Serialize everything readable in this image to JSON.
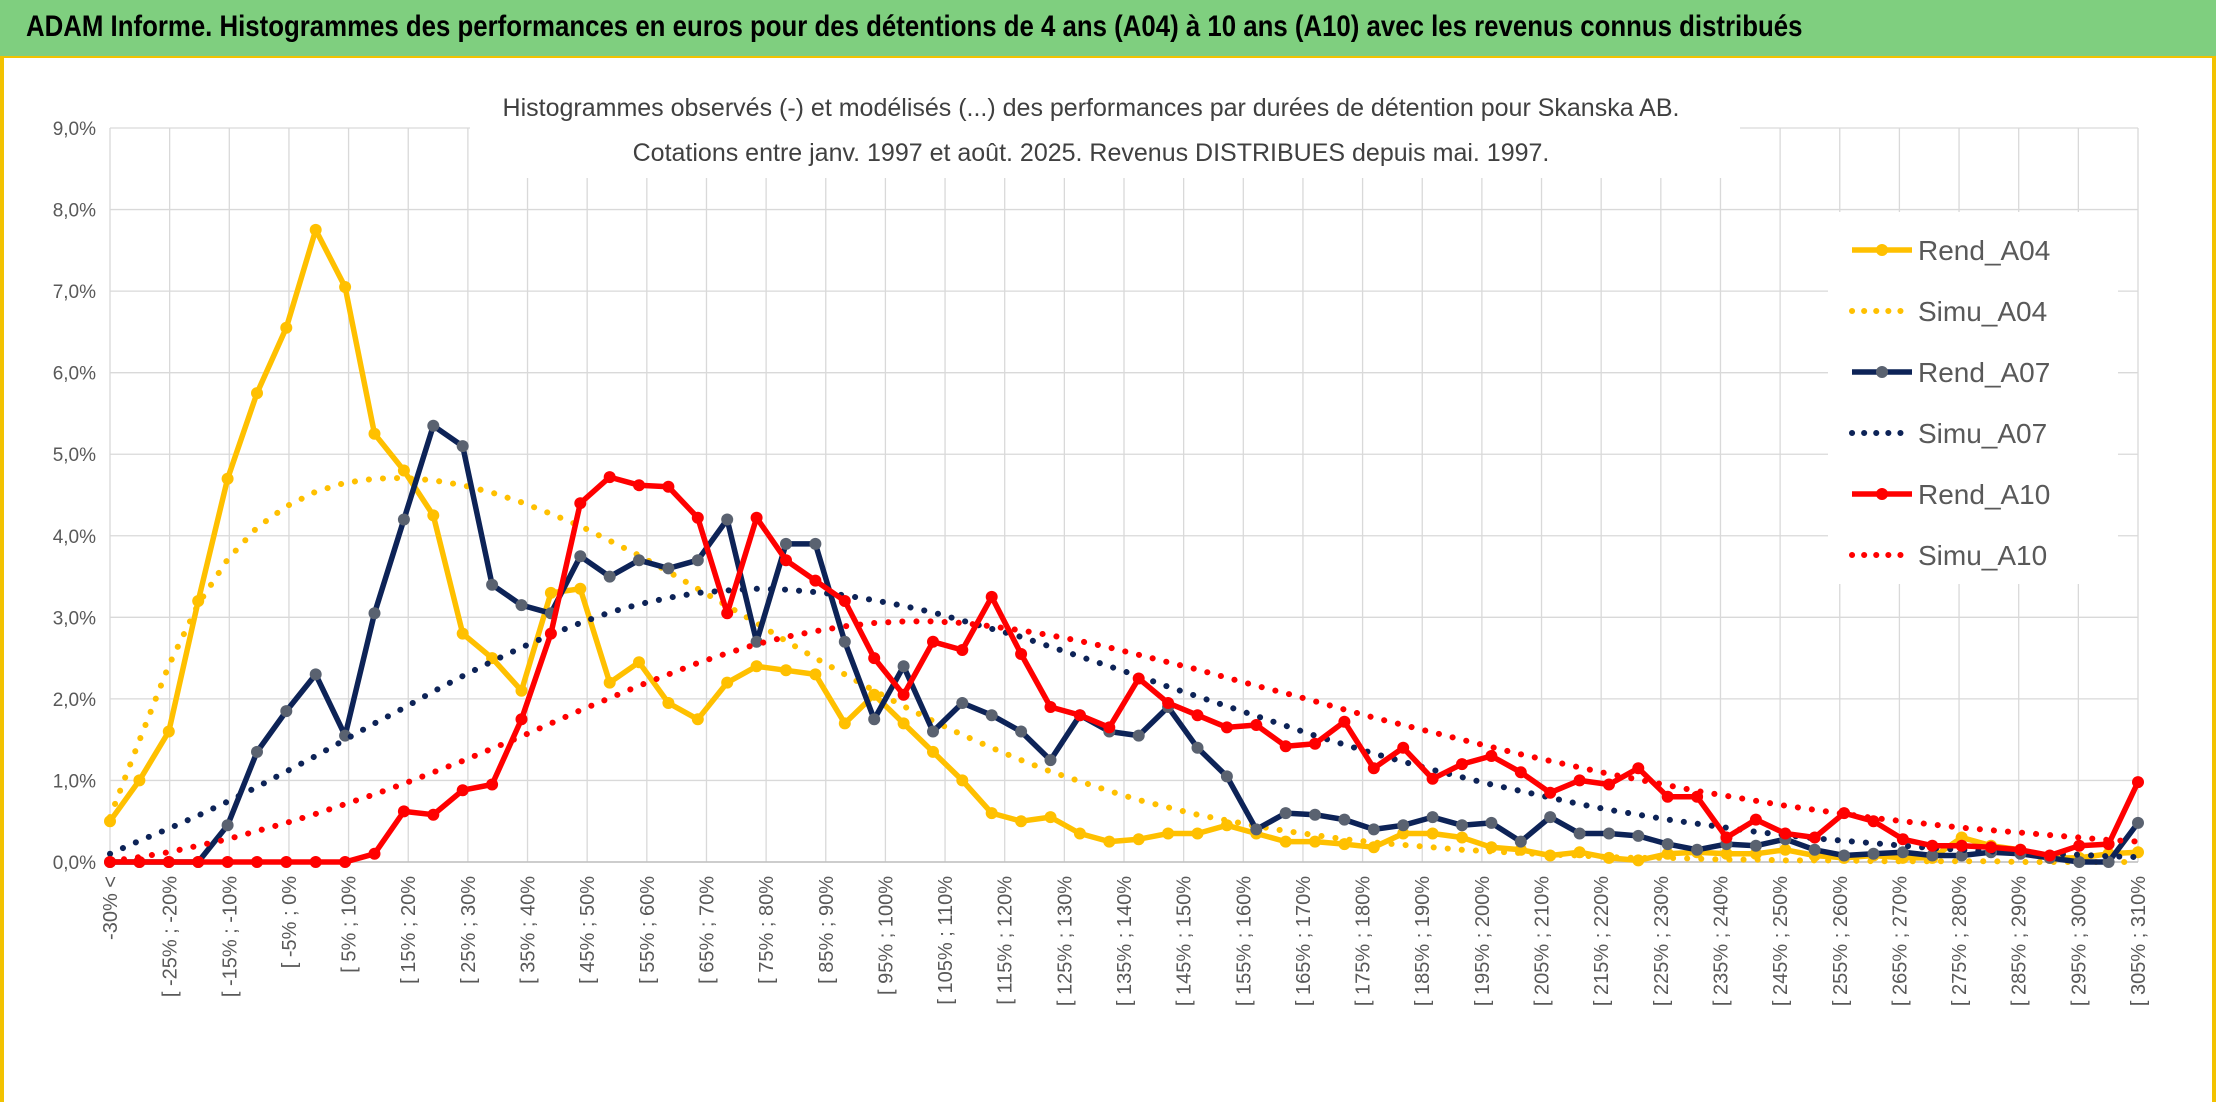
{
  "header": {
    "title": "ADAM Informe. Histogrammes des performances en euros pour des détentions de 4 ans (A04) à 10 ans (A10) avec les revenus connus distribués"
  },
  "chart_data": {
    "type": "line",
    "title": "Histogrammes observés (-) et modélisés (...) des performances par durées de détention pour Skanska AB.",
    "subtitle": "Cotations entre janv. 1997 et août. 2025. Revenus DISTRIBUES depuis mai. 1997.",
    "xlabel": "",
    "ylabel": "",
    "ylim": [
      0,
      9
    ],
    "y_ticks": [
      "0,0%",
      "1,0%",
      "2,0%",
      "3,0%",
      "4,0%",
      "5,0%",
      "6,0%",
      "7,0%",
      "8,0%",
      "9,0%"
    ],
    "grid": true,
    "legend_position": "right",
    "x_labels": [
      "-30% <",
      "[ -25% ; -20%",
      "[ -15% ; -10%",
      "[ -5% ; 0%",
      "[ 5% ; 10%",
      "[ 15% ; 20%",
      "[ 25% ; 30%",
      "[ 35% ; 40%",
      "[ 45% ; 50%",
      "[ 55% ; 60%",
      "[ 65% ; 70%",
      "[ 75% ; 80%",
      "[ 85% ; 90%",
      "[ 95% ; 100%",
      "[ 105% ; 110%",
      "[ 115% ; 120%",
      "[ 125% ; 130%",
      "[ 135% ; 140%",
      "[ 145% ; 150%",
      "[ 155% ; 160%",
      "[ 165% ; 170%",
      "[ 175% ; 180%",
      "[ 185% ; 190%",
      "[ 195% ; 200%",
      "[ 205% ; 210%",
      "[ 215% ; 220%",
      "[ 225% ; 230%",
      "[ 235% ; 240%",
      "[ 245% ; 250%",
      "[ 255% ; 260%",
      "[ 265% ; 270%",
      "[ 275% ; 280%",
      "[ 285% ; 290%",
      "[ 295% ; 300%",
      "[ 305% ; 310%"
    ],
    "series": [
      {
        "name": "Rend_A04",
        "style": "solid",
        "color": "#ffc000",
        "values": [
          0.5,
          1.0,
          1.6,
          3.2,
          4.7,
          5.75,
          6.55,
          7.75,
          7.05,
          5.25,
          4.8,
          4.25,
          2.8,
          2.5,
          2.1,
          3.3,
          3.35,
          2.2,
          2.45,
          1.95,
          1.75,
          2.2,
          2.4,
          2.35,
          2.3,
          1.7,
          2.05,
          1.7,
          1.35,
          1.0,
          0.6,
          0.5,
          0.55,
          0.35,
          0.25,
          0.28,
          0.35,
          0.35,
          0.45,
          0.35,
          0.25,
          0.25,
          0.22,
          0.18,
          0.35,
          0.35,
          0.3,
          0.18,
          0.15,
          0.08,
          0.12,
          0.05,
          0.02,
          0.1,
          0.12,
          0.1,
          0.1,
          0.15,
          0.08,
          0.05,
          0.08,
          0.05,
          0.05,
          0.3,
          0.2,
          0.15,
          0.05,
          0.05,
          0.1,
          0.12
        ]
      },
      {
        "name": "Simu_A04",
        "style": "dotted",
        "color": "#ffc000",
        "values": [
          0.55,
          1.49,
          2.41,
          3.16,
          3.71,
          4.1,
          4.36,
          4.54,
          4.65,
          4.7,
          4.71,
          4.68,
          4.62,
          4.53,
          4.41,
          4.27,
          4.12,
          3.94,
          3.76,
          3.56,
          3.35,
          3.14,
          2.93,
          2.71,
          2.5,
          2.3,
          2.1,
          1.91,
          1.73,
          1.56,
          1.4,
          1.25,
          1.11,
          0.99,
          0.87,
          0.76,
          0.67,
          0.58,
          0.51,
          0.44,
          0.38,
          0.33,
          0.28,
          0.24,
          0.21,
          0.18,
          0.15,
          0.13,
          0.11,
          0.09,
          0.08,
          0.06,
          0.05,
          0.05,
          0.04,
          0.03,
          0.03,
          0.02,
          0.02,
          0.02,
          0.01,
          0.01,
          0.01,
          0.01,
          0.01,
          0.0,
          0.0,
          0.0,
          0.0,
          0.0
        ]
      },
      {
        "name": "Rend_A07",
        "style": "solid",
        "color": "#0d2357",
        "values": [
          0.0,
          0.0,
          0.0,
          0.0,
          0.45,
          1.35,
          1.85,
          2.3,
          1.55,
          3.05,
          4.2,
          5.35,
          5.1,
          3.4,
          3.15,
          3.05,
          3.75,
          3.5,
          3.7,
          3.6,
          3.7,
          4.2,
          2.7,
          3.9,
          3.9,
          2.7,
          1.75,
          2.4,
          1.6,
          1.95,
          1.8,
          1.6,
          1.25,
          1.8,
          1.6,
          1.55,
          1.9,
          1.4,
          1.05,
          0.4,
          0.6,
          0.58,
          0.52,
          0.4,
          0.45,
          0.55,
          0.45,
          0.48,
          0.25,
          0.55,
          0.35,
          0.35,
          0.32,
          0.22,
          0.15,
          0.22,
          0.2,
          0.28,
          0.15,
          0.08,
          0.1,
          0.12,
          0.08,
          0.08,
          0.12,
          0.1,
          0.05,
          0.0,
          0.0,
          0.48
        ]
      },
      {
        "name": "Simu_A07",
        "style": "dotted",
        "color": "#0d2357",
        "values": [
          0.1,
          0.26,
          0.41,
          0.57,
          0.74,
          0.92,
          1.11,
          1.3,
          1.5,
          1.7,
          1.89,
          2.09,
          2.28,
          2.46,
          2.63,
          2.79,
          2.93,
          3.06,
          3.16,
          3.24,
          3.3,
          3.33,
          3.35,
          3.34,
          3.31,
          3.27,
          3.21,
          3.14,
          3.06,
          2.96,
          2.86,
          2.76,
          2.64,
          2.52,
          2.4,
          2.28,
          2.15,
          2.03,
          1.91,
          1.79,
          1.67,
          1.55,
          1.44,
          1.33,
          1.23,
          1.13,
          1.04,
          0.95,
          0.87,
          0.79,
          0.71,
          0.64,
          0.58,
          0.52,
          0.47,
          0.42,
          0.37,
          0.33,
          0.29,
          0.26,
          0.23,
          0.2,
          0.17,
          0.15,
          0.13,
          0.11,
          0.1,
          0.09,
          0.07,
          0.06
        ]
      },
      {
        "name": "Rend_A10",
        "style": "solid",
        "color": "#ff0000",
        "values": [
          0.0,
          0.0,
          0.0,
          0.0,
          0.0,
          0.0,
          0.0,
          0.0,
          0.0,
          0.1,
          0.62,
          0.58,
          0.88,
          0.95,
          1.75,
          2.8,
          4.4,
          4.72,
          4.62,
          4.6,
          4.22,
          3.05,
          4.22,
          3.7,
          3.45,
          3.2,
          2.5,
          2.05,
          2.7,
          2.6,
          3.25,
          2.55,
          1.9,
          1.8,
          1.65,
          2.25,
          1.95,
          1.8,
          1.65,
          1.68,
          1.42,
          1.45,
          1.72,
          1.15,
          1.4,
          1.02,
          1.2,
          1.3,
          1.1,
          0.85,
          1.0,
          0.95,
          1.15,
          0.8,
          0.8,
          0.3,
          0.52,
          0.35,
          0.3,
          0.6,
          0.5,
          0.28,
          0.2,
          0.2,
          0.18,
          0.15,
          0.08,
          0.2,
          0.22,
          0.98
        ]
      },
      {
        "name": "Simu_A10",
        "style": "dotted",
        "color": "#ff0000",
        "values": [
          0.01,
          0.06,
          0.12,
          0.2,
          0.28,
          0.38,
          0.48,
          0.59,
          0.71,
          0.83,
          0.96,
          1.1,
          1.24,
          1.39,
          1.54,
          1.7,
          1.86,
          2.01,
          2.16,
          2.3,
          2.44,
          2.56,
          2.67,
          2.76,
          2.83,
          2.89,
          2.93,
          2.95,
          2.95,
          2.93,
          2.89,
          2.84,
          2.78,
          2.71,
          2.63,
          2.54,
          2.45,
          2.36,
          2.26,
          2.16,
          2.07,
          1.97,
          1.87,
          1.77,
          1.68,
          1.59,
          1.5,
          1.41,
          1.32,
          1.24,
          1.16,
          1.08,
          1.01,
          0.94,
          0.87,
          0.81,
          0.75,
          0.69,
          0.64,
          0.59,
          0.54,
          0.5,
          0.46,
          0.42,
          0.39,
          0.36,
          0.33,
          0.3,
          0.27,
          0.25
        ]
      }
    ]
  }
}
